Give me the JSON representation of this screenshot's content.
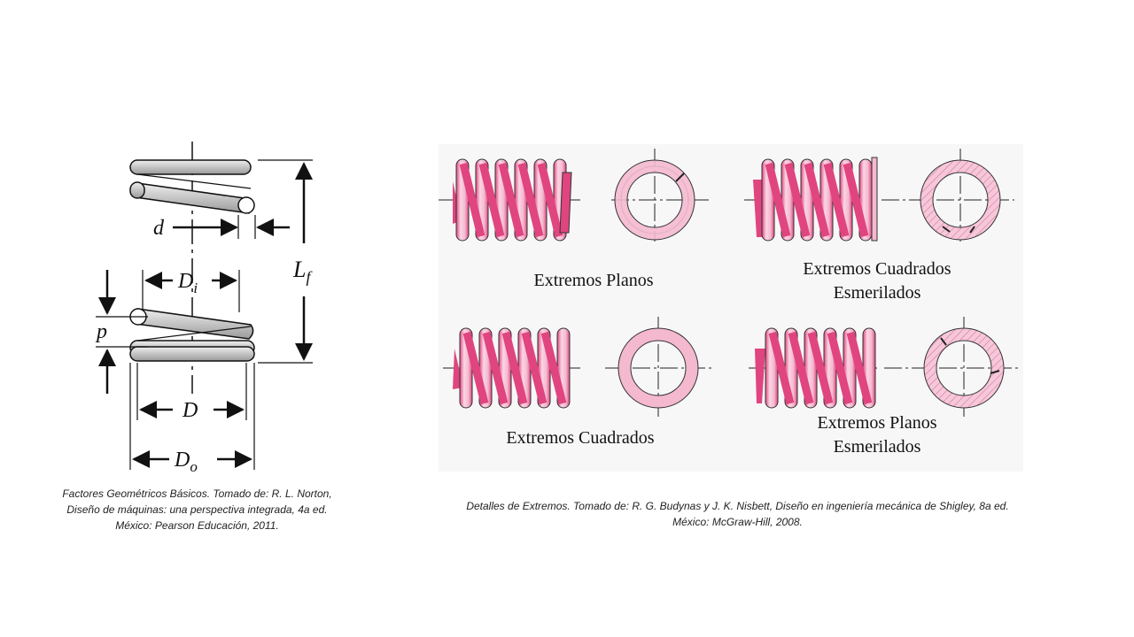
{
  "left_figure": {
    "labels": {
      "d": "d",
      "di_main": "D",
      "di_sub": "i",
      "lf_main": "L",
      "lf_sub": "f",
      "p": "p",
      "D": "D",
      "do_main": "D",
      "do_sub": "o"
    },
    "colors": {
      "coil": "#c4c4c4",
      "coil_highlight": "#eeeeee",
      "outline": "#111111"
    }
  },
  "right_figure": {
    "panels": [
      {
        "lines": [
          "Extremos Planos"
        ]
      },
      {
        "lines": [
          "Extremos Cuadrados",
          "Esmerilados"
        ]
      },
      {
        "lines": [
          "Extremos Cuadrados"
        ]
      },
      {
        "lines": [
          "Extremos Planos",
          "Esmerilados"
        ]
      }
    ],
    "colors": {
      "spring_dark": "#e0457f",
      "spring_light": "#f4b8cf",
      "background": "#f7f7f7"
    }
  },
  "captions": {
    "left": [
      "Factores Geométricos Básicos. Tomado de: R. L. Norton,",
      "Diseño de máquinas: una perspectiva integrada, 4a ed.",
      "México: Pearson Educación, 2011."
    ],
    "right": [
      "Detalles de Extremos. Tomado de: R. G. Budynas y J. K. Nisbett, Diseño en ingeniería mecánica de Shigley, 8a ed.",
      "México: McGraw-Hill, 2008."
    ]
  }
}
